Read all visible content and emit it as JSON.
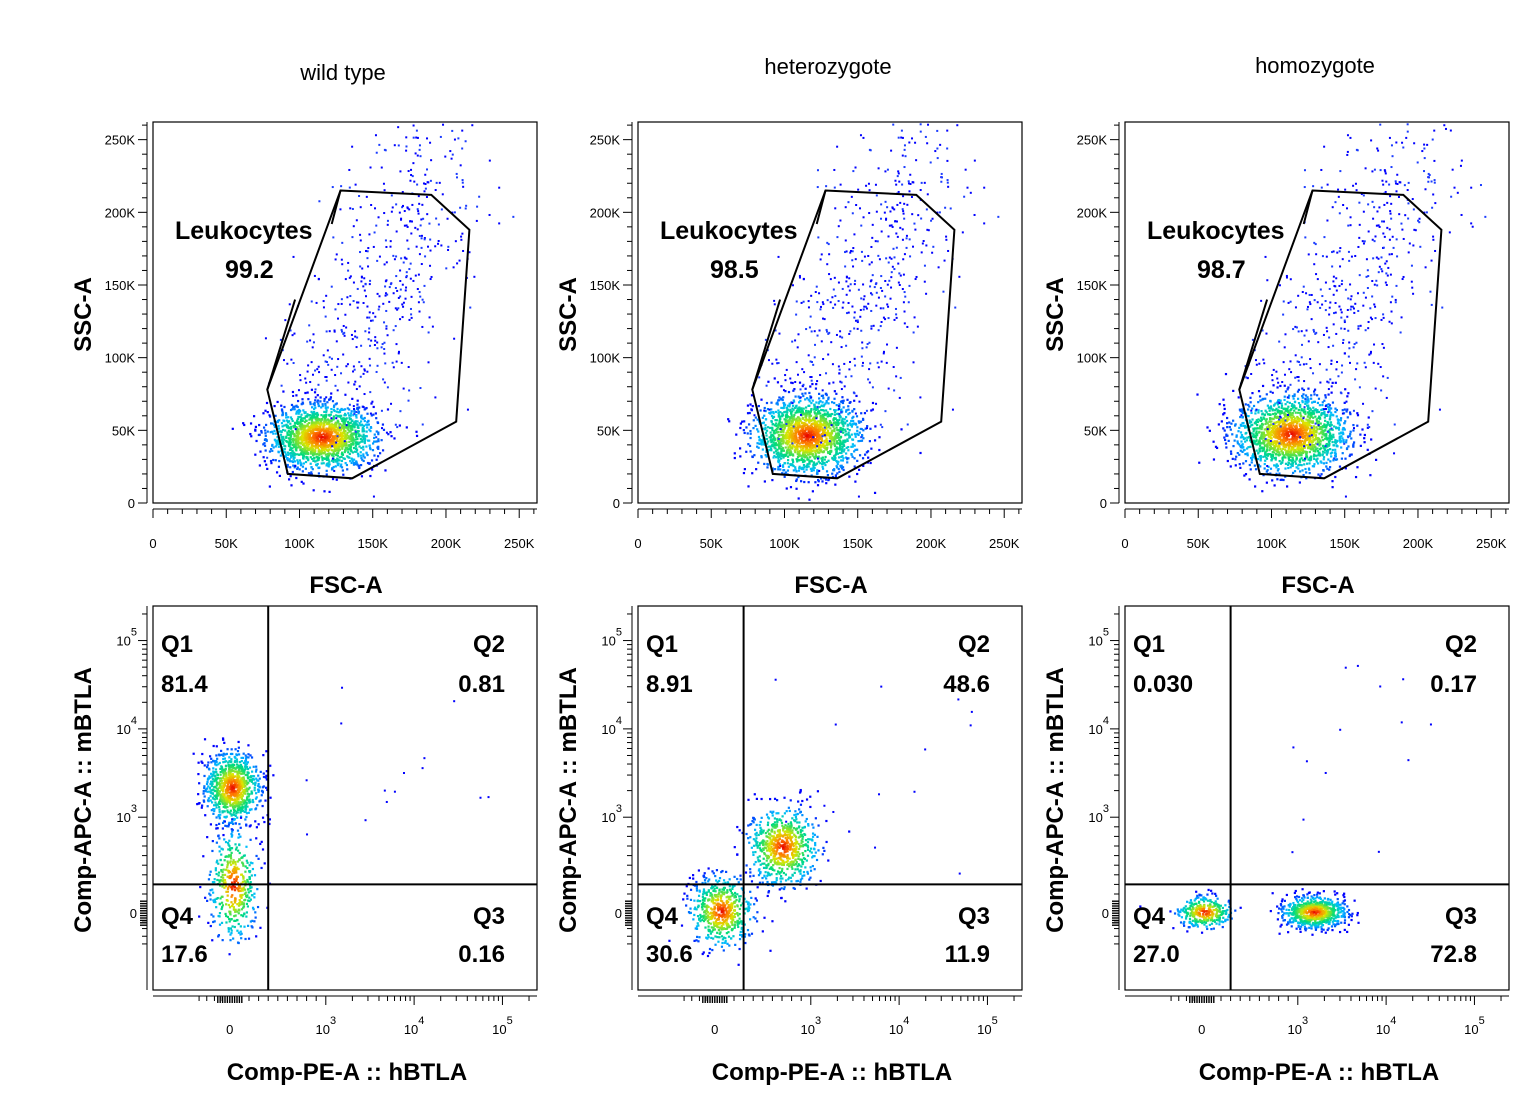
{
  "chart_data": [
    {
      "type": "scatter",
      "title": "wild type",
      "xlabel": "FSC-A",
      "ylabel": "SSC-A",
      "xlim": [
        0,
        262144
      ],
      "ylim": [
        0,
        262144
      ],
      "x_ticks": [
        0,
        50000,
        100000,
        150000,
        200000,
        250000
      ],
      "x_tick_labels": [
        "0",
        "50K",
        "100K",
        "150K",
        "200K",
        "250K"
      ],
      "y_ticks": [
        0,
        50000,
        100000,
        150000,
        200000,
        250000
      ],
      "y_tick_labels": [
        "0",
        "50K",
        "100K",
        "150K",
        "200K",
        "250K"
      ],
      "gate": {
        "name": "Leukocytes",
        "value": "99.2",
        "polygon": [
          [
            128000,
            215000
          ],
          [
            190000,
            212000
          ],
          [
            216000,
            188000
          ],
          [
            207000,
            56000
          ],
          [
            136000,
            17000
          ],
          [
            92000,
            20000
          ],
          [
            78000,
            78000
          ]
        ]
      },
      "population": {
        "center": [
          115000,
          46000
        ],
        "spread": [
          18000,
          11000
        ]
      }
    },
    {
      "type": "scatter",
      "title": "heterozygote",
      "xlabel": "FSC-A",
      "ylabel": "SSC-A",
      "xlim": [
        0,
        262144
      ],
      "ylim": [
        0,
        262144
      ],
      "x_ticks": [
        0,
        50000,
        100000,
        150000,
        200000,
        250000
      ],
      "x_tick_labels": [
        "0",
        "50K",
        "100K",
        "150K",
        "200K",
        "250K"
      ],
      "y_ticks": [
        0,
        50000,
        100000,
        150000,
        200000,
        250000
      ],
      "y_tick_labels": [
        "0",
        "50K",
        "100K",
        "150K",
        "200K",
        "250K"
      ],
      "gate": {
        "name": "Leukocytes",
        "value": "98.5",
        "polygon": [
          [
            128000,
            215000
          ],
          [
            190000,
            212000
          ],
          [
            216000,
            188000
          ],
          [
            207000,
            56000
          ],
          [
            136000,
            17000
          ],
          [
            92000,
            20000
          ],
          [
            78000,
            78000
          ]
        ]
      },
      "population": {
        "center": [
          115000,
          47000
        ],
        "spread": [
          18000,
          13000
        ]
      }
    },
    {
      "type": "scatter",
      "title": "homozygote",
      "xlabel": "FSC-A",
      "ylabel": "SSC-A",
      "xlim": [
        0,
        262144
      ],
      "ylim": [
        0,
        262144
      ],
      "x_ticks": [
        0,
        50000,
        100000,
        150000,
        200000,
        250000
      ],
      "x_tick_labels": [
        "0",
        "50K",
        "100K",
        "150K",
        "200K",
        "250K"
      ],
      "y_ticks": [
        0,
        50000,
        100000,
        150000,
        200000,
        250000
      ],
      "y_tick_labels": [
        "0",
        "50K",
        "100K",
        "150K",
        "200K",
        "250K"
      ],
      "gate": {
        "name": "Leukocytes",
        "value": "98.7",
        "polygon": [
          [
            128000,
            215000
          ],
          [
            190000,
            212000
          ],
          [
            216000,
            188000
          ],
          [
            207000,
            56000
          ],
          [
            136000,
            17000
          ],
          [
            92000,
            20000
          ],
          [
            78000,
            78000
          ]
        ]
      },
      "population": {
        "center": [
          113000,
          48000
        ],
        "spread": [
          19000,
          13000
        ]
      }
    },
    {
      "type": "scatter",
      "xlabel": "Comp-PE-A :: hBTLA",
      "ylabel": "Comp-APC-A :: mBTLA",
      "scale": "biexponential",
      "x_ticks": [
        0,
        1000,
        10000,
        100000
      ],
      "y_ticks": [
        0,
        1000,
        10000,
        100000
      ],
      "quadrant_divider": {
        "x": 400,
        "y": 300
      },
      "quadrants": [
        {
          "name": "Q1",
          "value": "81.4"
        },
        {
          "name": "Q2",
          "value": "0.81"
        },
        {
          "name": "Q3",
          "value": "0.16"
        },
        {
          "name": "Q4",
          "value": "17.6"
        }
      ]
    },
    {
      "type": "scatter",
      "xlabel": "Comp-PE-A :: hBTLA",
      "ylabel": "Comp-APC-A :: mBTLA",
      "scale": "biexponential",
      "x_ticks": [
        0,
        1000,
        10000,
        100000
      ],
      "y_ticks": [
        0,
        1000,
        10000,
        100000
      ],
      "quadrant_divider": {
        "x": 300,
        "y": 300
      },
      "quadrants": [
        {
          "name": "Q1",
          "value": "8.91"
        },
        {
          "name": "Q2",
          "value": "48.6"
        },
        {
          "name": "Q3",
          "value": "11.9"
        },
        {
          "name": "Q4",
          "value": "30.6"
        }
      ]
    },
    {
      "type": "scatter",
      "xlabel": "Comp-PE-A :: hBTLA",
      "ylabel": "Comp-APC-A :: mBTLA",
      "scale": "biexponential",
      "x_ticks": [
        0,
        1000,
        10000,
        100000
      ],
      "y_ticks": [
        0,
        1000,
        10000,
        100000
      ],
      "quadrant_divider": {
        "x": 300,
        "y": 300
      },
      "quadrants": [
        {
          "name": "Q1",
          "value": "0.030"
        },
        {
          "name": "Q2",
          "value": "0.17"
        },
        {
          "name": "Q3",
          "value": "72.8"
        },
        {
          "name": "Q4",
          "value": "27.0"
        }
      ]
    }
  ]
}
